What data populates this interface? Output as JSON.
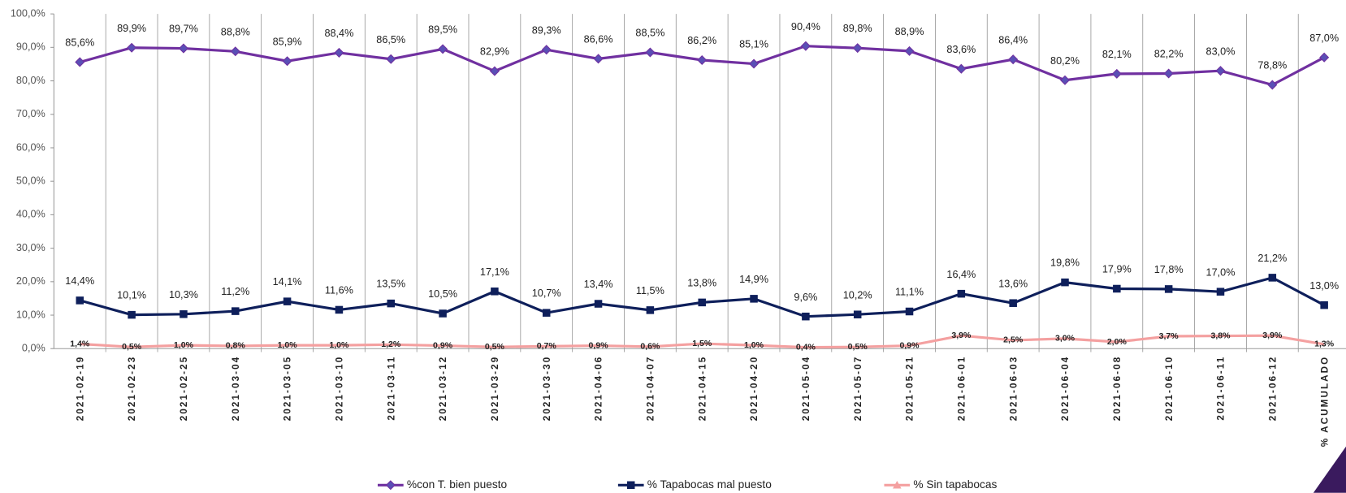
{
  "chart_data": {
    "type": "line",
    "categories": [
      "2021-02-19",
      "2021-02-23",
      "2021-02-25",
      "2021-03-04",
      "2021-03-05",
      "2021-03-10",
      "2021-03-11",
      "2021-03-12",
      "2021-03-29",
      "2021-03-30",
      "2021-04-06",
      "2021-04-07",
      "2021-04-15",
      "2021-04-20",
      "2021-05-04",
      "2021-05-07",
      "2021-05-21",
      "2021-06-01",
      "2021-06-03",
      "2021-06-04",
      "2021-06-08",
      "2021-06-10",
      "2021-06-11",
      "2021-06-12",
      "% ACUMULADO"
    ],
    "series": [
      {
        "name": "%con T. bien puesto",
        "color": "#7030a0",
        "marker": "diamond",
        "values": [
          85.6,
          89.9,
          89.7,
          88.8,
          85.9,
          88.4,
          86.5,
          89.5,
          82.9,
          89.3,
          86.6,
          88.5,
          86.2,
          85.1,
          90.4,
          89.8,
          88.9,
          83.6,
          86.4,
          80.2,
          82.1,
          82.2,
          83.0,
          78.8,
          87.0
        ],
        "value_labels": [
          "85,6%",
          "89,9%",
          "89,7%",
          "88,8%",
          "85,9%",
          "88,4%",
          "86,5%",
          "89,5%",
          "82,9%",
          "89,3%",
          "86,6%",
          "88,5%",
          "86,2%",
          "85,1%",
          "90,4%",
          "89,8%",
          "88,9%",
          "83,6%",
          "86,4%",
          "80,2%",
          "82,1%",
          "82,2%",
          "83,0%",
          "78,8%",
          "87,0%"
        ]
      },
      {
        "name": "% Tapabocas mal puesto",
        "color": "#0e1f5b",
        "marker": "square",
        "values": [
          14.4,
          10.1,
          10.3,
          11.2,
          14.1,
          11.6,
          13.5,
          10.5,
          17.1,
          10.7,
          13.4,
          11.5,
          13.8,
          14.9,
          9.6,
          10.2,
          11.1,
          16.4,
          13.6,
          19.8,
          17.9,
          17.8,
          17.0,
          21.2,
          13.0
        ],
        "value_labels": [
          "14,4%",
          "10,1%",
          "10,3%",
          "11,2%",
          "14,1%",
          "11,6%",
          "13,5%",
          "10,5%",
          "17,1%",
          "10,7%",
          "13,4%",
          "11,5%",
          "13,8%",
          "14,9%",
          "9,6%",
          "10,2%",
          "11,1%",
          "16,4%",
          "13,6%",
          "19,8%",
          "17,9%",
          "17,8%",
          "17,0%",
          "21,2%",
          "13,0%"
        ]
      },
      {
        "name": "% Sin tapabocas",
        "color": "#f4a0a0",
        "marker": "triangle",
        "values": [
          1.4,
          0.5,
          1.0,
          0.8,
          1.0,
          1.0,
          1.2,
          0.9,
          0.5,
          0.7,
          0.9,
          0.6,
          1.5,
          1.0,
          0.4,
          0.5,
          0.9,
          3.9,
          2.5,
          3.0,
          2.0,
          3.7,
          3.8,
          3.9,
          1.3
        ],
        "value_labels": [
          "1,4%",
          "0,5%",
          "1,0%",
          "0,8%",
          "1,0%",
          "1,0%",
          "1,2%",
          "0,9%",
          "0,5%",
          "0,7%",
          "0,9%",
          "0,6%",
          "1,5%",
          "1,0%",
          "0,4%",
          "0,5%",
          "0,9%",
          "3,9%",
          "2,5%",
          "3,0%",
          "2,0%",
          "3,7%",
          "3,8%",
          "3,9%",
          "1,3%"
        ]
      }
    ],
    "ylim": [
      0,
      100
    ],
    "yticks": [
      {
        "value": 0,
        "label": "0,0%"
      },
      {
        "value": 10,
        "label": "10,0%"
      },
      {
        "value": 20,
        "label": "20,0%"
      },
      {
        "value": 30,
        "label": "30,0%"
      },
      {
        "value": 40,
        "label": "40,0%"
      },
      {
        "value": 50,
        "label": "50,0%"
      },
      {
        "value": 60,
        "label": "60,0%"
      },
      {
        "value": 70,
        "label": "70,0%"
      },
      {
        "value": 80,
        "label": "80,0%"
      },
      {
        "value": 90,
        "label": "90,0%"
      },
      {
        "value": 100,
        "label": "100,0%"
      }
    ],
    "legend": "bottom"
  }
}
